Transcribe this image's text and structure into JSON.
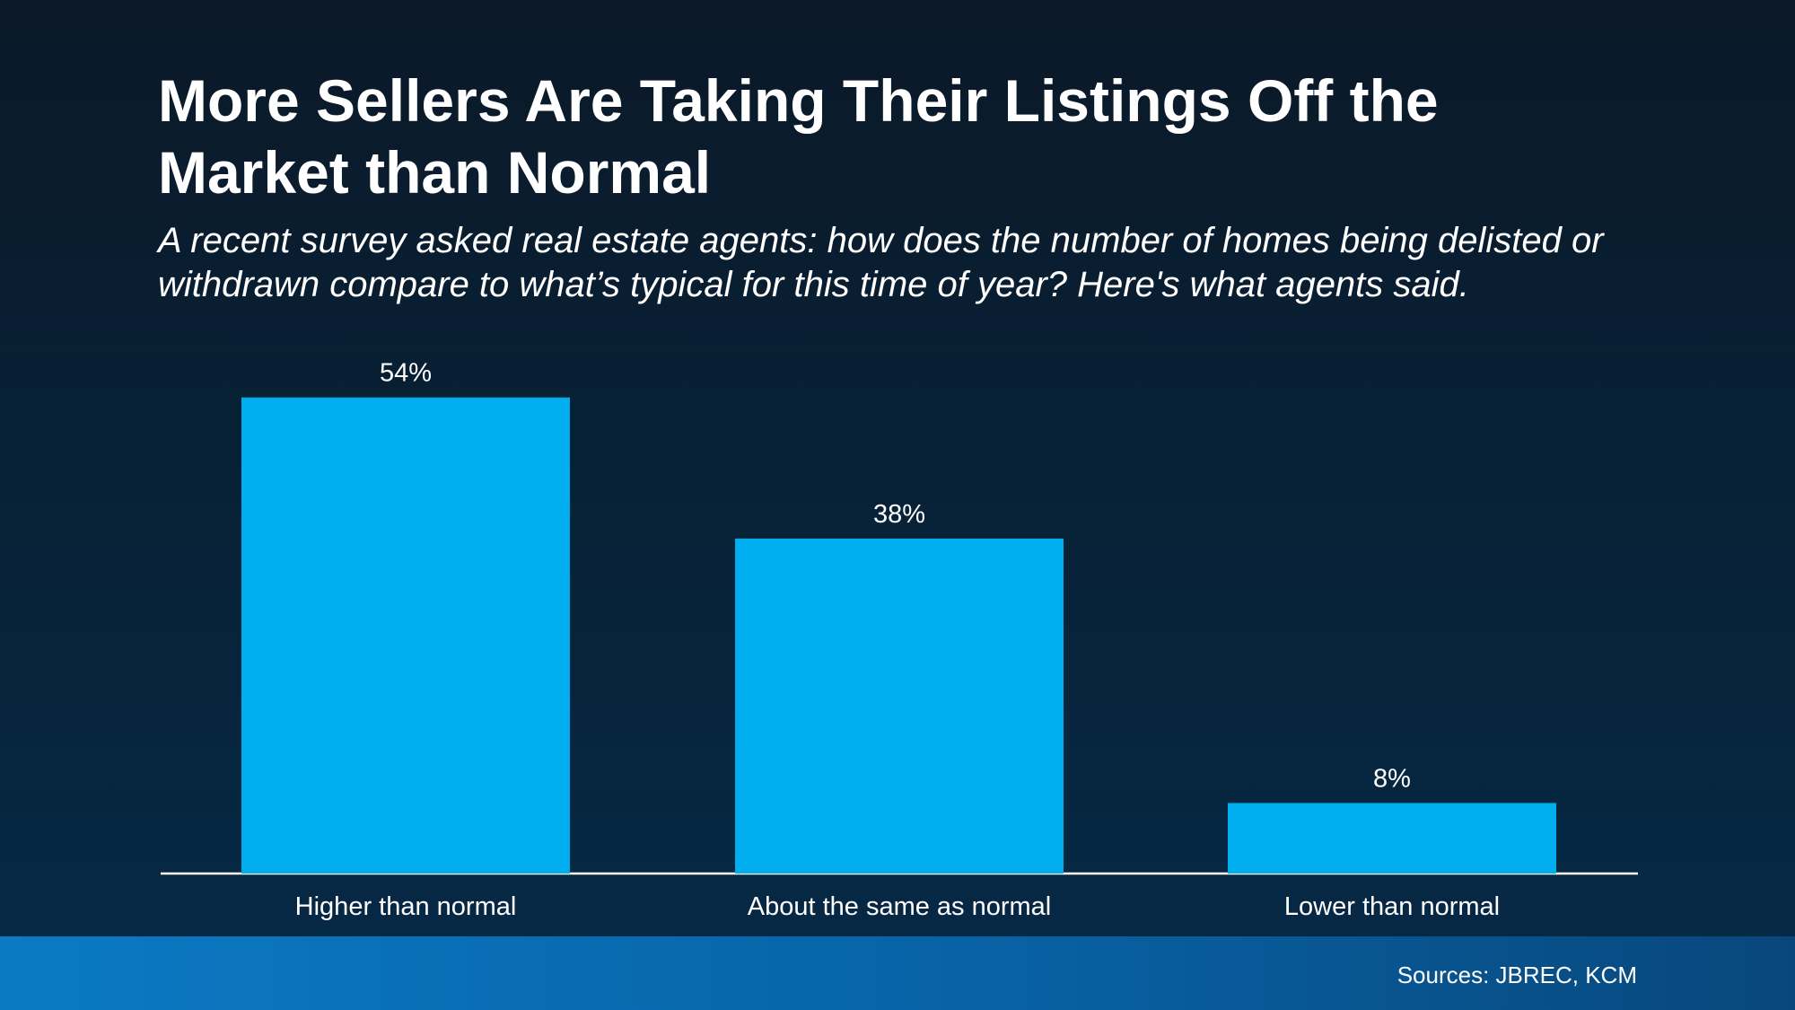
{
  "chart_data": {
    "type": "bar",
    "title": "More Sellers Are Taking Their Listings Off the Market than Normal",
    "subtitle": "A recent survey asked real estate agents: how does the number of homes being delisted or withdrawn compare to what’s typical for this time of year? Here's what agents said.",
    "categories": [
      "Higher than normal",
      "About the same as normal",
      "Lower than normal"
    ],
    "values": [
      54,
      38,
      8
    ],
    "value_labels": [
      "54%",
      "38%",
      "8%"
    ],
    "color": "#00aeef",
    "source": "Sources: JBREC, KCM"
  }
}
